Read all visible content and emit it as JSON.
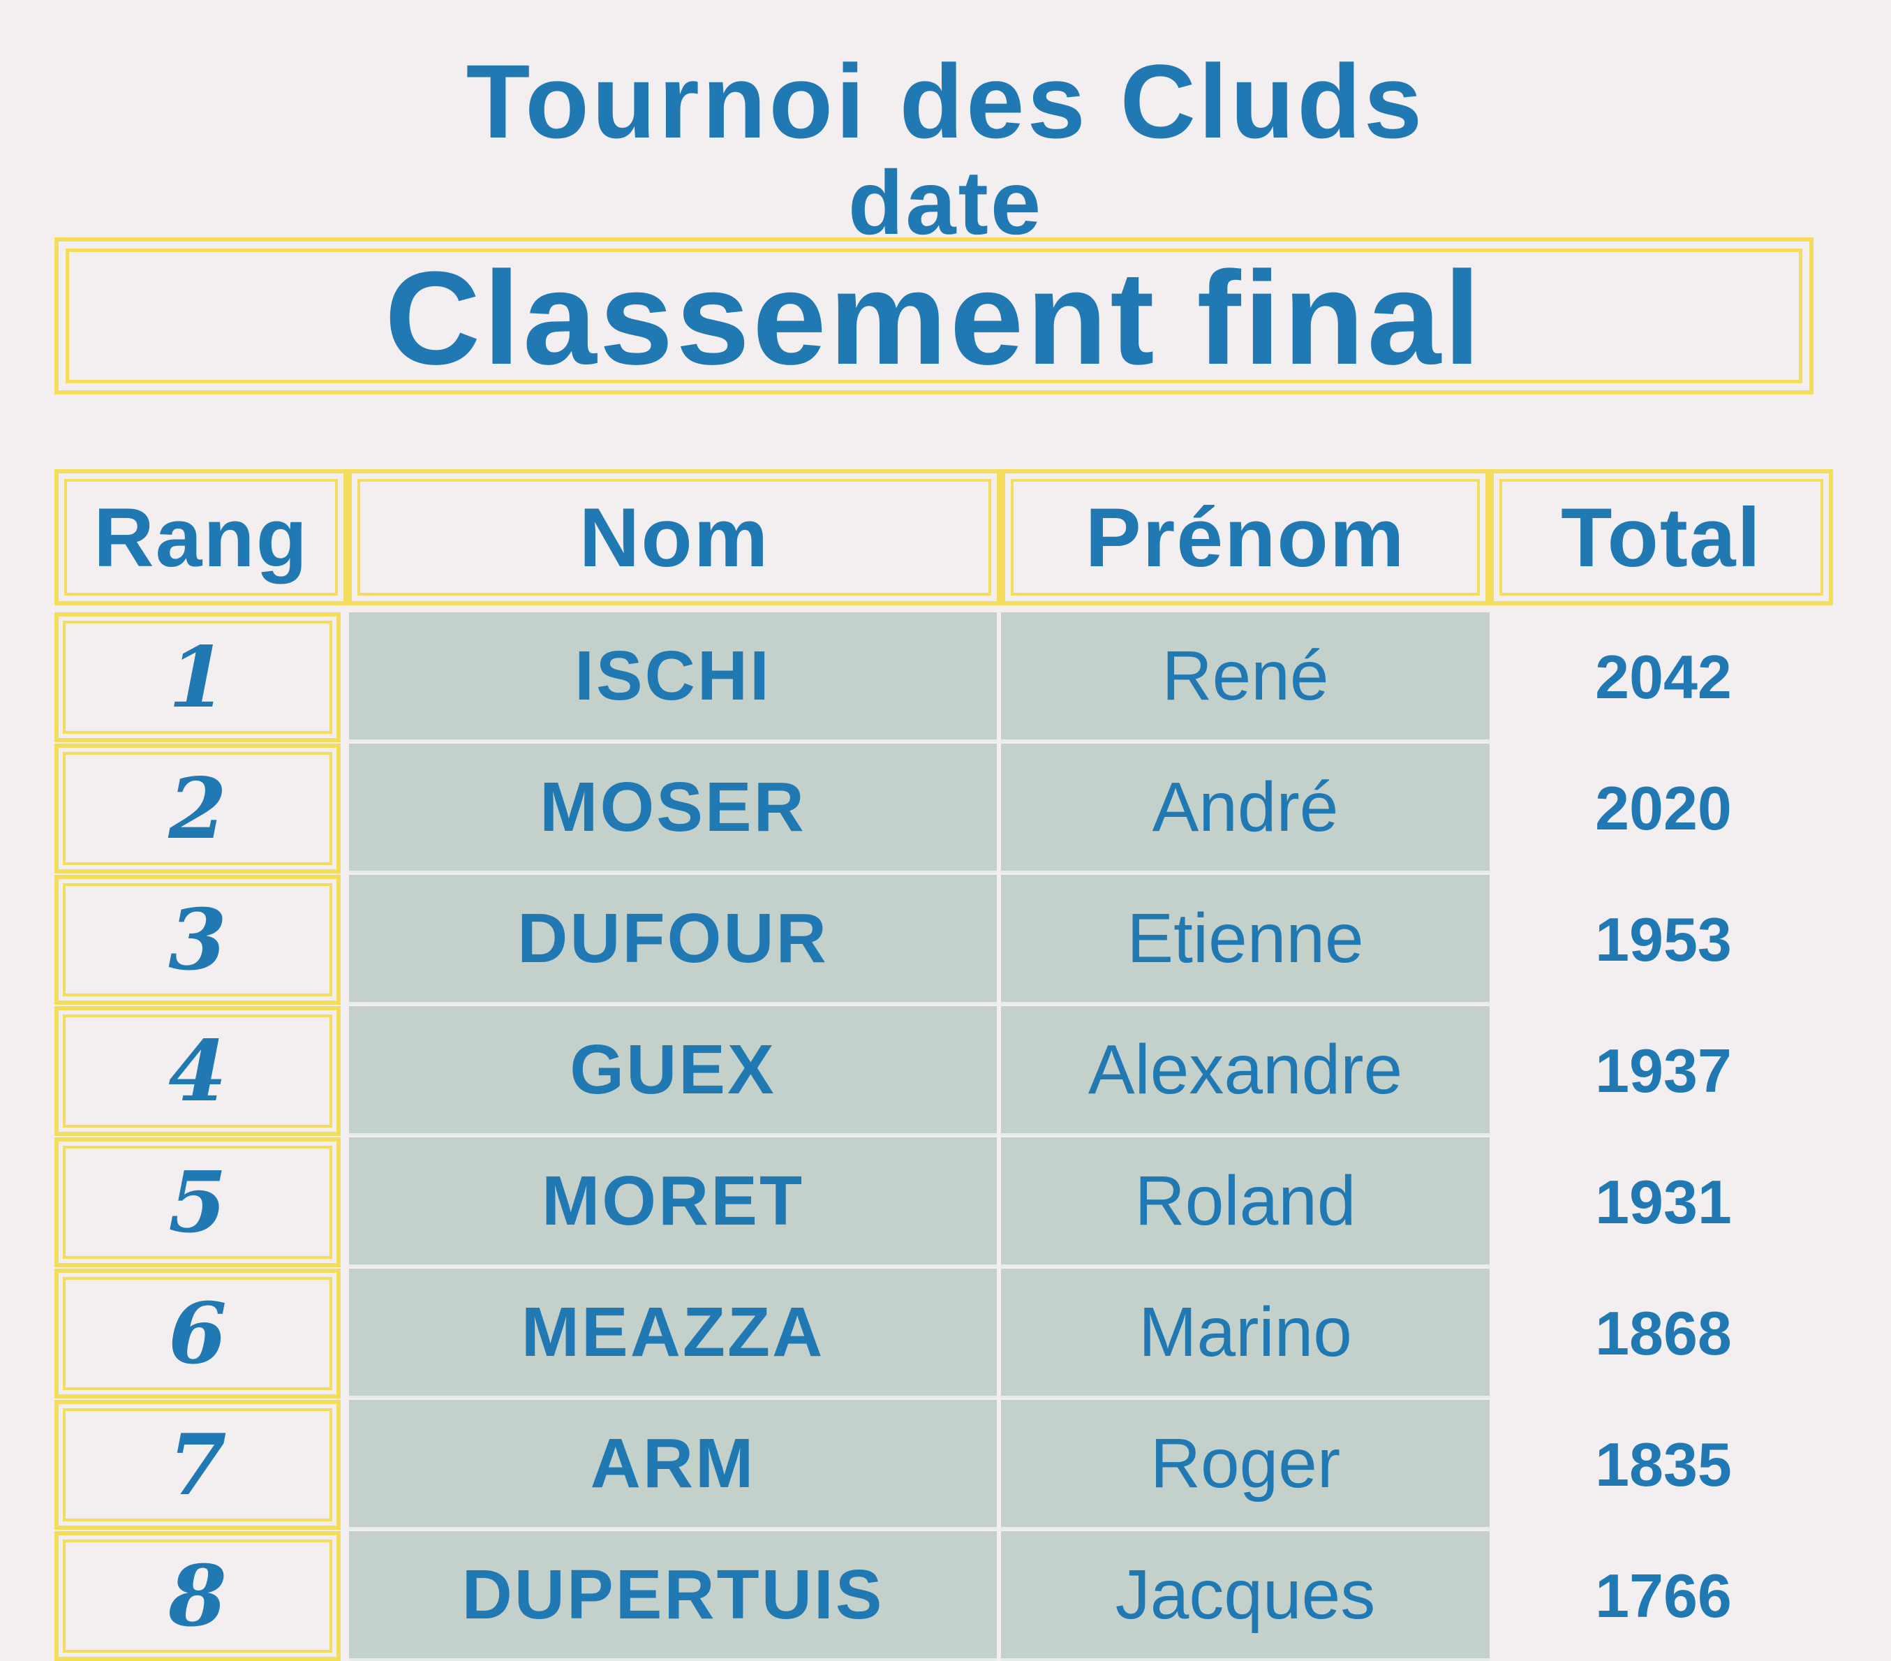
{
  "header": {
    "title": "Tournoi des Cluds",
    "subtitle": "date",
    "banner": "Classement  final"
  },
  "colors": {
    "text": "#2079b3",
    "border": "#f4dc5c",
    "cell_fill": "#c4d1cb",
    "paper": "#f3eef0"
  },
  "table": {
    "columns": [
      "Rang",
      "Nom",
      "Prénom",
      "Total"
    ],
    "rows": [
      {
        "rang": "1",
        "nom": "ISCHI",
        "prenom": "René",
        "total": "2042"
      },
      {
        "rang": "2",
        "nom": "MOSER",
        "prenom": "André",
        "total": "2020"
      },
      {
        "rang": "3",
        "nom": "DUFOUR",
        "prenom": "Etienne",
        "total": "1953"
      },
      {
        "rang": "4",
        "nom": "GUEX",
        "prenom": "Alexandre",
        "total": "1937"
      },
      {
        "rang": "5",
        "nom": "MORET",
        "prenom": "Roland",
        "total": "1931"
      },
      {
        "rang": "6",
        "nom": "MEAZZA",
        "prenom": "Marino",
        "total": "1868"
      },
      {
        "rang": "7",
        "nom": "ARM",
        "prenom": "Roger",
        "total": "1835"
      },
      {
        "rang": "8",
        "nom": "DUPERTUIS",
        "prenom": "Jacques",
        "total": "1766"
      }
    ]
  }
}
